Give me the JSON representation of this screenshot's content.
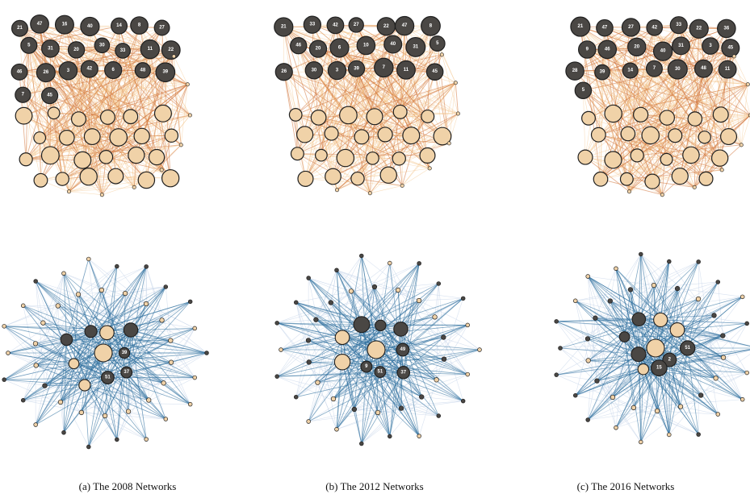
{
  "figure": {
    "captions": [
      "(a) The 2008 Networks",
      "(b) The 2012 Networks",
      "(c) The 2016 Networks"
    ]
  },
  "colors": {
    "background": "#ffffff",
    "dark_node": "#4a4744",
    "light_node": "#f0d2a8",
    "node_stroke": "#1f1f1f",
    "top_edge": "#d2753a",
    "top_edge_light": "#f3c07f",
    "bottom_edge": "#2f6f9e",
    "bottom_edge_light": "#c8d6ea"
  },
  "top_networks": [
    {
      "dark_labels": [
        "21",
        "47",
        "16",
        "40",
        "14",
        "8",
        "27",
        "5",
        "31",
        "20",
        "30",
        "33",
        "11",
        "22",
        "46",
        "26",
        "3",
        "42",
        "6",
        "48",
        "39",
        "7",
        "45"
      ],
      "light_count": 24
    },
    {
      "dark_labels": [
        "21",
        "33",
        "42",
        "27",
        "22",
        "47",
        "8",
        "46",
        "20",
        "6",
        "10",
        "40",
        "31",
        "5",
        "26",
        "30",
        "3",
        "39",
        "7",
        "11",
        "45"
      ],
      "light_count": 22
    },
    {
      "dark_labels": [
        "21",
        "47",
        "27",
        "42",
        "33",
        "22",
        "36",
        "9",
        "46",
        "20",
        "40",
        "31",
        "3",
        "45",
        "28",
        "39",
        "14",
        "7",
        "30",
        "48",
        "11",
        "5"
      ],
      "light_count": 23
    }
  ],
  "bottom_networks": [
    {
      "labels": [
        "39",
        "37",
        "51"
      ]
    },
    {
      "labels": [
        "49",
        "37",
        "51",
        "9"
      ]
    },
    {
      "labels": [
        "51",
        "2",
        "15"
      ]
    }
  ]
}
